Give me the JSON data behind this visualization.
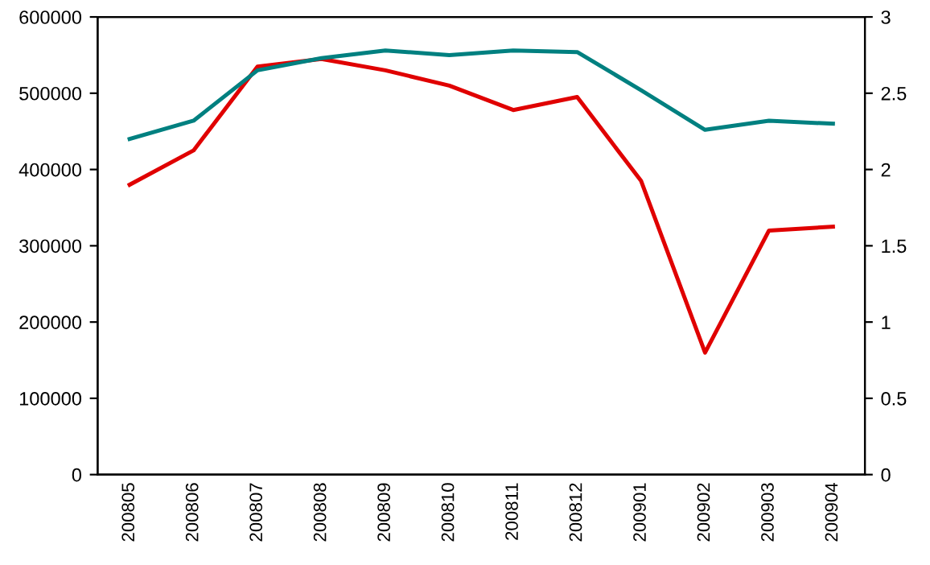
{
  "chart_data": {
    "type": "line",
    "categories": [
      "200805",
      "200806",
      "200807",
      "200808",
      "200809",
      "200810",
      "200811",
      "200812",
      "200901",
      "200902",
      "200903",
      "200904"
    ],
    "series": [
      {
        "color": "#e00000",
        "values": [
          380000,
          425000,
          535000,
          545000,
          530000,
          510000,
          478000,
          495000,
          385000,
          160000,
          320000,
          325000
        ]
      },
      {
        "color": "#008080",
        "axis": "y2",
        "values": [
          2.2,
          2.32,
          2.65,
          2.73,
          2.78,
          2.75,
          2.78,
          2.77,
          2.52,
          2.26,
          2.32,
          2.3
        ]
      }
    ],
    "ylim": [
      0,
      600000
    ],
    "yticks": [
      0,
      100000,
      200000,
      300000,
      400000,
      500000,
      600000
    ],
    "y2lim": [
      0,
      3
    ],
    "y2ticks": [
      0,
      0.5,
      1,
      1.5,
      2,
      2.5,
      3
    ],
    "grid": false,
    "legend": false,
    "marker": "none",
    "line_style": "solid"
  }
}
